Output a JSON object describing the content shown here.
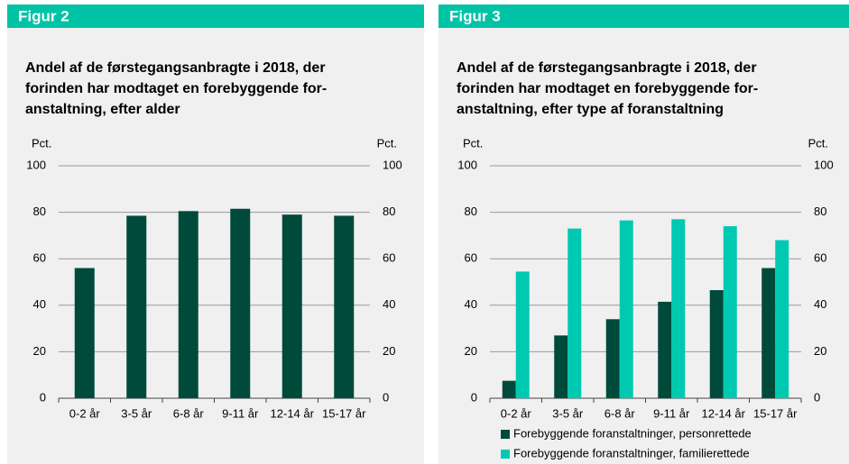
{
  "chart_data": [
    {
      "type": "bar",
      "figure_label": "Figur 2",
      "title": [
        "Andel af de førstegangsanbragte i 2018, der",
        "forinden har modtaget en forebyggende for-",
        "anstaltning, efter alder"
      ],
      "y_label": "Pct.",
      "y2_label": "Pct.",
      "categories": [
        "0-2 år",
        "3-5 år",
        "6-8 år",
        "9-11 år",
        "12-14 år",
        "15-17 år"
      ],
      "series": [
        {
          "name": null,
          "color": "#004a3b",
          "values": [
            56,
            78.5,
            80.5,
            81.5,
            79,
            78.5
          ]
        }
      ],
      "ylim": [
        0,
        100
      ],
      "yticks": [
        0,
        20,
        40,
        60,
        80,
        100
      ],
      "grid": true
    },
    {
      "type": "bar",
      "figure_label": "Figur 3",
      "title": [
        "Andel af de førstegangsanbragte i 2018, der",
        "forinden har modtaget en forebyggende for-",
        "anstaltning, efter type af foranstaltning"
      ],
      "y_label": "Pct.",
      "y2_label": "Pct.",
      "categories": [
        "0-2 år",
        "3-5 år",
        "6-8 år",
        "9-11 år",
        "12-14 år",
        "15-17 år"
      ],
      "series": [
        {
          "name": "Forebyggende foranstaltninger, personrettede",
          "color": "#004a3b",
          "values": [
            7.5,
            27,
            34,
            41.5,
            46.5,
            56
          ]
        },
        {
          "name": "Forebyggende foranstaltninger, familierettede",
          "color": "#00c9b1",
          "values": [
            54.5,
            73,
            76.5,
            77,
            74,
            68
          ]
        }
      ],
      "ylim": [
        0,
        100
      ],
      "yticks": [
        0,
        20,
        40,
        60,
        80,
        100
      ],
      "grid": true,
      "legend": "bottom"
    }
  ]
}
